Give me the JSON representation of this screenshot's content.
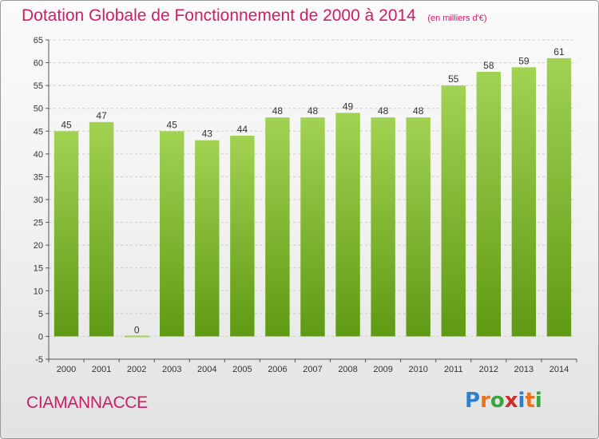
{
  "title": "Dotation Globale de Fonctionnement de 2000 à 2014",
  "unit_note": "(en milliers d'€)",
  "place_name": "CIAMANNACCE",
  "logo": {
    "text": "Proxiti",
    "letters": [
      {
        "ch": "P",
        "color": "#2f7fd0"
      },
      {
        "ch": "r",
        "color": "#e8731c"
      },
      {
        "ch": "o",
        "color": "#3aa53a"
      },
      {
        "ch": "x",
        "color": "#d42a2a"
      },
      {
        "ch": "i",
        "color": "#2f7fd0"
      },
      {
        "ch": "t",
        "color": "#e8731c"
      },
      {
        "ch": "i",
        "color": "#3aa53a"
      }
    ]
  },
  "colors": {
    "title": "#cc1d66",
    "bar_top": "#a2d252",
    "bar_bottom": "#5f9a14",
    "grid": "#cccccc",
    "axis": "#555555"
  },
  "chart_data": {
    "type": "bar",
    "categories": [
      "2000",
      "2001",
      "2002",
      "2003",
      "2004",
      "2005",
      "2006",
      "2007",
      "2008",
      "2009",
      "2010",
      "2011",
      "2012",
      "2013",
      "2014"
    ],
    "values": [
      45,
      47,
      0,
      45,
      43,
      44,
      48,
      48,
      49,
      48,
      48,
      55,
      58,
      59,
      61
    ],
    "data_labels": [
      "45",
      "47",
      "0",
      "45",
      "43",
      "44",
      "48",
      "48",
      "49",
      "48",
      "48",
      "55",
      "58",
      "59",
      "61"
    ],
    "ylim": [
      -5,
      65
    ],
    "yticks": [
      -5,
      0,
      5,
      10,
      15,
      20,
      25,
      30,
      35,
      40,
      45,
      50,
      55,
      60,
      65
    ],
    "grid": true,
    "xlabel": "",
    "ylabel": ""
  }
}
